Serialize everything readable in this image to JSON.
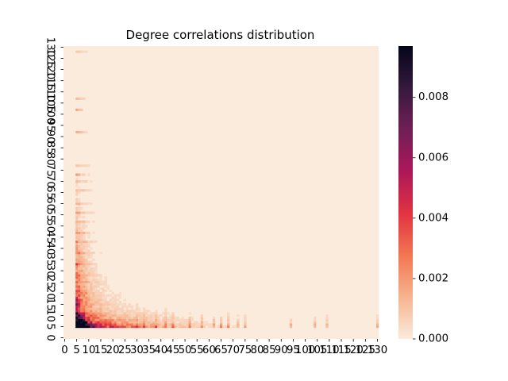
{
  "chart_data": {
    "type": "heatmap",
    "title": "Degree correlations distribution",
    "xlabel": "",
    "ylabel": "",
    "x_tick_labels": [
      "0",
      "5",
      "10",
      "15",
      "20",
      "25",
      "30",
      "35",
      "40",
      "45",
      "50",
      "55",
      "60",
      "65",
      "70",
      "75",
      "80",
      "85",
      "90",
      "95",
      "100",
      "105",
      "110",
      "115",
      "120",
      "125",
      "130"
    ],
    "y_tick_labels": [
      "0",
      "5",
      "10",
      "15",
      "20",
      "25",
      "30",
      "35",
      "40",
      "45",
      "50",
      "55",
      "60",
      "65",
      "70",
      "75",
      "80",
      "85",
      "90",
      "95",
      "100",
      "105",
      "110",
      "115",
      "120",
      "125",
      "130"
    ],
    "x_range": [
      0,
      130
    ],
    "y_range": [
      0,
      130
    ],
    "colorbar": {
      "min": 0.0,
      "max": 0.0097,
      "tick_values": [
        0.0,
        0.002,
        0.004,
        0.006,
        0.008
      ],
      "tick_labels": [
        "0.000",
        "0.002",
        "0.004",
        "0.006",
        "0.008"
      ],
      "colormap": "rocket_r",
      "colors": [
        "#faebdd",
        "#f6b48f",
        "#f37651",
        "#e13342",
        "#ad1759",
        "#701f57",
        "#35193e",
        "#03051a"
      ]
    },
    "background_color": "#faebdd",
    "peak_cell": {
      "x": 6,
      "y": 6,
      "value": 0.0097
    },
    "grid": false,
    "legend": "colorbar-right"
  }
}
